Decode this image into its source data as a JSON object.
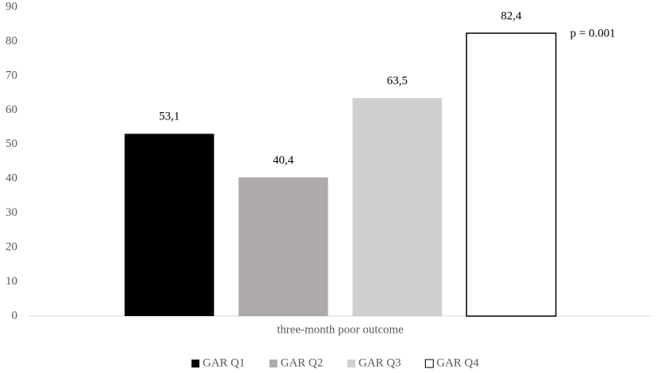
{
  "chart_data": {
    "type": "bar",
    "categories": [
      "three-month poor outcome"
    ],
    "series": [
      {
        "name": "GAR Q1",
        "color": "#000000",
        "values": [
          53.1
        ],
        "value_labels": [
          "53,1"
        ]
      },
      {
        "name": "GAR Q2",
        "color": "#AEAAAA",
        "values": [
          40.4
        ],
        "value_labels": [
          "40,4"
        ]
      },
      {
        "name": "GAR Q3",
        "color": "#D0CECE",
        "values": [
          63.5
        ],
        "value_labels": [
          "63,5"
        ]
      },
      {
        "name": "GAR Q4",
        "color": "#FFFFFF",
        "values": [
          82.4
        ],
        "value_labels": [
          "82,4"
        ]
      }
    ],
    "annotation": "p = 0.001",
    "ylim": [
      0,
      90
    ],
    "yticks": [
      0,
      10,
      20,
      30,
      40,
      50,
      60,
      70,
      80,
      90
    ],
    "grid": false,
    "legend": "bottom"
  }
}
